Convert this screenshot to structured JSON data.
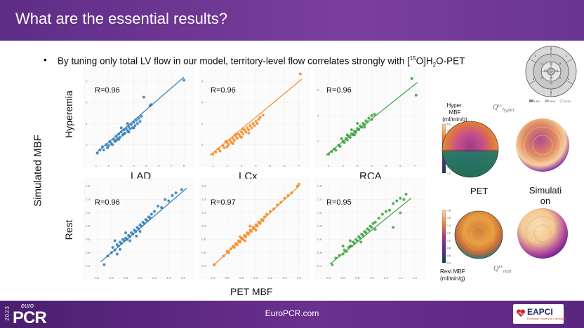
{
  "slide": {
    "title": "What are the essential results?",
    "bullet": "By tuning only total LV flow in our model, territory-level flow correlates strongly with [",
    "bullet_sup": "15",
    "bullet_mid": "O]H",
    "bullet_sub": "2",
    "bullet_end": "O-PET",
    "y_axis_label": "Simulated MBF",
    "x_axis_label": "PET MBF",
    "row_labels": [
      "Hyperemia",
      "Rest"
    ],
    "column_labels": [
      "LAD",
      "LCx",
      "RCA"
    ]
  },
  "colors": {
    "LAD": "#2d7bb6",
    "LCx": "#f28a1e",
    "RCA": "#3aa23a"
  },
  "chart_data": [
    {
      "type": "scatter",
      "panel": "LAD-hyperemia",
      "r_label": "R=0.96",
      "x_ticks": [
        "1",
        "2",
        "3",
        "4",
        "5",
        "6",
        "7",
        "8"
      ],
      "y_ticks": [
        "2",
        "4",
        "6",
        "8"
      ],
      "xlim": [
        0.5,
        8.5
      ],
      "ylim": [
        0.5,
        9
      ],
      "fit": [
        [
          1.0,
          1.2
        ],
        [
          8.0,
          8.4
        ]
      ],
      "points": [
        [
          1.1,
          1.2
        ],
        [
          1.3,
          1.5
        ],
        [
          1.5,
          1.8
        ],
        [
          1.6,
          1.5
        ],
        [
          1.8,
          2.0
        ],
        [
          2.0,
          1.9
        ],
        [
          2.1,
          2.3
        ],
        [
          2.2,
          2.1
        ],
        [
          2.4,
          2.5
        ],
        [
          2.5,
          2.3
        ],
        [
          2.6,
          2.8
        ],
        [
          2.7,
          2.6
        ],
        [
          2.8,
          3.0
        ],
        [
          2.9,
          2.7
        ],
        [
          3.0,
          3.2
        ],
        [
          3.1,
          2.9
        ],
        [
          3.2,
          3.4
        ],
        [
          3.3,
          3.1
        ],
        [
          3.4,
          3.5
        ],
        [
          3.5,
          3.3
        ],
        [
          3.6,
          3.7
        ],
        [
          3.7,
          3.5
        ],
        [
          3.8,
          3.9
        ],
        [
          3.9,
          3.6
        ],
        [
          4.0,
          4.1
        ],
        [
          4.1,
          3.8
        ],
        [
          4.2,
          4.3
        ],
        [
          4.3,
          4.0
        ],
        [
          4.4,
          4.5
        ],
        [
          4.5,
          4.2
        ],
        [
          4.6,
          4.7
        ],
        [
          2.3,
          2.0
        ],
        [
          3.5,
          4.0
        ],
        [
          3.0,
          3.6
        ],
        [
          4.0,
          3.6
        ],
        [
          1.9,
          1.7
        ],
        [
          2.6,
          2.4
        ],
        [
          5.3,
          5.7
        ],
        [
          5.4,
          5.8
        ],
        [
          4.8,
          6.5
        ],
        [
          8.0,
          8.1
        ],
        [
          3.2,
          3.0
        ],
        [
          2.8,
          2.5
        ],
        [
          3.6,
          3.2
        ]
      ]
    },
    {
      "type": "scatter",
      "panel": "LCx-hyperemia",
      "r_label": "R=0.96",
      "x_ticks": [
        "1",
        "2",
        "3",
        "4",
        "5",
        "6",
        "7"
      ],
      "y_ticks": [
        "2",
        "4",
        "6",
        "8"
      ],
      "xlim": [
        0.5,
        7.5
      ],
      "ylim": [
        0.5,
        9
      ],
      "fit": [
        [
          0.8,
          1.0
        ],
        [
          7.2,
          8.2
        ]
      ],
      "points": [
        [
          1.0,
          1.1
        ],
        [
          1.2,
          1.3
        ],
        [
          1.4,
          1.6
        ],
        [
          1.5,
          1.4
        ],
        [
          1.7,
          1.9
        ],
        [
          1.8,
          1.7
        ],
        [
          2.0,
          2.2
        ],
        [
          2.1,
          2.0
        ],
        [
          2.2,
          2.4
        ],
        [
          2.3,
          2.2
        ],
        [
          2.4,
          2.6
        ],
        [
          2.5,
          2.4
        ],
        [
          2.6,
          2.8
        ],
        [
          2.7,
          2.6
        ],
        [
          2.8,
          3.0
        ],
        [
          2.9,
          2.8
        ],
        [
          3.0,
          3.2
        ],
        [
          3.1,
          3.0
        ],
        [
          3.2,
          3.4
        ],
        [
          3.3,
          3.2
        ],
        [
          3.4,
          3.6
        ],
        [
          3.5,
          3.4
        ],
        [
          3.6,
          3.8
        ],
        [
          3.7,
          3.6
        ],
        [
          3.8,
          4.0
        ],
        [
          3.9,
          3.8
        ],
        [
          4.0,
          4.2
        ],
        [
          4.1,
          4.0
        ],
        [
          4.2,
          4.4
        ],
        [
          2.0,
          1.8
        ],
        [
          2.6,
          3.0
        ],
        [
          3.1,
          3.5
        ],
        [
          3.5,
          3.1
        ],
        [
          1.9,
          2.3
        ],
        [
          4.3,
          4.6
        ],
        [
          4.5,
          4.8
        ],
        [
          7.1,
          8.7
        ],
        [
          2.4,
          2.1
        ],
        [
          3.0,
          2.7
        ]
      ]
    },
    {
      "type": "scatter",
      "panel": "RCA-hyperemia",
      "r_label": "R=0.96",
      "x_ticks": [
        "1",
        "2",
        "3",
        "4",
        "5",
        "6",
        "7"
      ],
      "y_ticks": [
        "2",
        "4",
        "6"
      ],
      "xlim": [
        0.5,
        7.5
      ],
      "ylim": [
        0.5,
        7.5
      ],
      "fit": [
        [
          0.8,
          0.9
        ],
        [
          7.2,
          6.6
        ]
      ],
      "points": [
        [
          1.0,
          1.0
        ],
        [
          1.2,
          1.2
        ],
        [
          1.4,
          1.4
        ],
        [
          1.5,
          1.3
        ],
        [
          1.7,
          1.7
        ],
        [
          1.8,
          1.6
        ],
        [
          2.0,
          2.0
        ],
        [
          2.1,
          1.9
        ],
        [
          2.2,
          2.2
        ],
        [
          2.3,
          2.1
        ],
        [
          2.4,
          2.4
        ],
        [
          2.5,
          2.3
        ],
        [
          2.6,
          2.6
        ],
        [
          2.7,
          2.5
        ],
        [
          2.8,
          2.8
        ],
        [
          2.9,
          2.7
        ],
        [
          3.0,
          3.0
        ],
        [
          3.1,
          2.9
        ],
        [
          3.2,
          3.2
        ],
        [
          3.3,
          3.1
        ],
        [
          3.4,
          3.4
        ],
        [
          3.5,
          3.3
        ],
        [
          3.6,
          3.6
        ],
        [
          3.7,
          3.5
        ],
        [
          3.8,
          3.8
        ],
        [
          1.9,
          2.2
        ],
        [
          2.6,
          2.9
        ],
        [
          3.0,
          3.4
        ],
        [
          3.5,
          3.1
        ],
        [
          4.0,
          4.0
        ],
        [
          4.2,
          4.1
        ],
        [
          4.0,
          3.7
        ],
        [
          6.8,
          6.9
        ],
        [
          7.1,
          5.6
        ],
        [
          2.3,
          2.5
        ],
        [
          2.8,
          2.5
        ]
      ]
    },
    {
      "type": "scatter",
      "panel": "LAD-rest",
      "r_label": "R=0.96",
      "x_ticks": [
        "0.4",
        "0.6",
        "0.8",
        "1.0",
        "1.2",
        "1.4",
        "1.6"
      ],
      "y_ticks": [
        "0.4",
        "0.6",
        "0.8",
        "1.0",
        "1.2",
        "1.4",
        "1.6"
      ],
      "xlim": [
        0.3,
        1.7
      ],
      "ylim": [
        0.3,
        1.65
      ],
      "fit": [
        [
          0.45,
          0.46
        ],
        [
          1.65,
          1.57
        ]
      ],
      "points": [
        [
          0.5,
          0.42
        ],
        [
          0.55,
          0.55
        ],
        [
          0.6,
          0.6
        ],
        [
          0.62,
          0.68
        ],
        [
          0.65,
          0.64
        ],
        [
          0.68,
          0.72
        ],
        [
          0.7,
          0.7
        ],
        [
          0.72,
          0.76
        ],
        [
          0.74,
          0.74
        ],
        [
          0.76,
          0.8
        ],
        [
          0.78,
          0.78
        ],
        [
          0.8,
          0.82
        ],
        [
          0.82,
          0.8
        ],
        [
          0.84,
          0.86
        ],
        [
          0.86,
          0.84
        ],
        [
          0.88,
          0.9
        ],
        [
          0.9,
          0.88
        ],
        [
          0.92,
          0.94
        ],
        [
          0.94,
          0.92
        ],
        [
          0.96,
          0.98
        ],
        [
          0.98,
          0.96
        ],
        [
          1.0,
          1.02
        ],
        [
          1.02,
          1.0
        ],
        [
          1.04,
          1.06
        ],
        [
          1.06,
          1.04
        ],
        [
          1.08,
          1.1
        ],
        [
          1.1,
          1.08
        ],
        [
          1.12,
          1.14
        ],
        [
          1.14,
          1.12
        ],
        [
          1.16,
          1.18
        ],
        [
          1.2,
          1.22
        ],
        [
          1.25,
          1.3
        ],
        [
          1.3,
          1.28
        ],
        [
          1.35,
          1.4
        ],
        [
          1.4,
          1.38
        ],
        [
          1.45,
          1.46
        ],
        [
          1.5,
          1.5
        ],
        [
          1.58,
          1.55
        ],
        [
          0.72,
          0.65
        ],
        [
          0.86,
          0.78
        ],
        [
          0.95,
          0.85
        ],
        [
          0.8,
          0.9
        ],
        [
          0.65,
          0.78
        ],
        [
          1.0,
          0.92
        ],
        [
          0.68,
          0.58
        ]
      ]
    },
    {
      "type": "scatter",
      "panel": "LCx-rest",
      "r_label": "R=0.97",
      "x_ticks": [
        "0.4",
        "0.6",
        "0.8",
        "1.0",
        "1.2",
        "1.4",
        "1.6"
      ],
      "y_ticks": [
        "0.4",
        "0.6",
        "0.8",
        "1.0",
        "1.2",
        "1.4",
        "1.6"
      ],
      "xlim": [
        0.3,
        1.7
      ],
      "ylim": [
        0.3,
        1.65
      ],
      "fit": [
        [
          0.4,
          0.4
        ],
        [
          1.6,
          1.6
        ]
      ],
      "points": [
        [
          0.42,
          0.42
        ],
        [
          0.55,
          0.55
        ],
        [
          0.6,
          0.62
        ],
        [
          0.62,
          0.6
        ],
        [
          0.65,
          0.66
        ],
        [
          0.68,
          0.7
        ],
        [
          0.7,
          0.68
        ],
        [
          0.72,
          0.74
        ],
        [
          0.74,
          0.72
        ],
        [
          0.76,
          0.78
        ],
        [
          0.78,
          0.76
        ],
        [
          0.8,
          0.82
        ],
        [
          0.82,
          0.8
        ],
        [
          0.84,
          0.86
        ],
        [
          0.86,
          0.84
        ],
        [
          0.88,
          0.9
        ],
        [
          0.9,
          0.88
        ],
        [
          0.92,
          0.94
        ],
        [
          0.94,
          0.92
        ],
        [
          0.96,
          0.98
        ],
        [
          0.98,
          0.96
        ],
        [
          1.0,
          1.02
        ],
        [
          1.02,
          1.0
        ],
        [
          1.04,
          1.06
        ],
        [
          1.06,
          1.04
        ],
        [
          1.08,
          1.1
        ],
        [
          1.1,
          1.08
        ],
        [
          1.12,
          1.14
        ],
        [
          1.15,
          1.18
        ],
        [
          1.2,
          1.22
        ],
        [
          1.25,
          1.26
        ],
        [
          1.3,
          1.32
        ],
        [
          1.35,
          1.36
        ],
        [
          1.4,
          1.42
        ],
        [
          1.45,
          1.46
        ],
        [
          1.5,
          1.5
        ],
        [
          1.58,
          1.6
        ],
        [
          1.6,
          1.63
        ],
        [
          0.85,
          0.78
        ],
        [
          0.78,
          0.84
        ],
        [
          0.92,
          1.0
        ],
        [
          1.0,
          0.94
        ]
      ]
    },
    {
      "type": "scatter",
      "panel": "RCA-rest",
      "r_label": "R=0.95",
      "x_ticks": [
        "0.4",
        "0.6",
        "0.8",
        "1.0",
        "1.2",
        "1.4",
        "1.6"
      ],
      "y_ticks": [
        "0.4",
        "0.6",
        "0.8",
        "1.0",
        "1.2",
        "1.4",
        "1.6"
      ],
      "xlim": [
        0.3,
        1.7
      ],
      "ylim": [
        0.3,
        1.65
      ],
      "fit": [
        [
          0.42,
          0.43
        ],
        [
          1.55,
          1.42
        ]
      ],
      "points": [
        [
          0.45,
          0.42
        ],
        [
          0.5,
          0.52
        ],
        [
          0.55,
          0.56
        ],
        [
          0.6,
          0.58
        ],
        [
          0.62,
          0.64
        ],
        [
          0.65,
          0.62
        ],
        [
          0.68,
          0.68
        ],
        [
          0.7,
          0.7
        ],
        [
          0.72,
          0.7
        ],
        [
          0.74,
          0.76
        ],
        [
          0.76,
          0.74
        ],
        [
          0.78,
          0.8
        ],
        [
          0.8,
          0.78
        ],
        [
          0.82,
          0.84
        ],
        [
          0.84,
          0.82
        ],
        [
          0.86,
          0.88
        ],
        [
          0.88,
          0.86
        ],
        [
          0.9,
          0.92
        ],
        [
          0.92,
          0.9
        ],
        [
          0.94,
          0.96
        ],
        [
          0.96,
          0.94
        ],
        [
          0.98,
          1.0
        ],
        [
          1.0,
          0.98
        ],
        [
          1.02,
          1.04
        ],
        [
          1.05,
          1.06
        ],
        [
          1.1,
          1.12
        ],
        [
          1.15,
          1.18
        ],
        [
          1.2,
          1.22
        ],
        [
          1.25,
          1.24
        ],
        [
          1.3,
          1.34
        ],
        [
          1.35,
          1.38
        ],
        [
          1.4,
          1.42
        ],
        [
          1.45,
          1.4
        ],
        [
          1.48,
          1.48
        ],
        [
          1.4,
          1.2
        ],
        [
          1.3,
          0.98
        ],
        [
          0.85,
          0.76
        ],
        [
          0.7,
          0.78
        ],
        [
          1.05,
          0.95
        ],
        [
          0.6,
          0.7
        ]
      ]
    }
  ],
  "polar_maps": {
    "hyper_label": "Hyper. MBF",
    "hyper_unit": "(ml/min/g)",
    "rest_label": "Rest MBF",
    "rest_unit": "(ml/min/g)",
    "q_hyper": "Q",
    "q_hyper_sup": "LV",
    "q_hyper_sub": "hyper",
    "q_rest": "Q",
    "q_rest_sup": "LV",
    "q_rest_sub": "rest",
    "pet_label": "PET",
    "simulation_label": "Simulation",
    "hyper_colorbar_ticks": [
      "5.0",
      "4.5",
      "4.0",
      "3.5",
      "3.0",
      "2.5",
      "2.0",
      "1.5",
      "1.0"
    ],
    "rest_colorbar_ticks": [
      "1.8",
      "1.6",
      "1.4",
      "1.2",
      "1.0",
      "0.8",
      "0.6",
      "0.4"
    ]
  },
  "bullseye": {
    "segments": [
      "1",
      "2",
      "3",
      "4",
      "5",
      "6",
      "7",
      "8",
      "9",
      "10",
      "11",
      "12",
      "13",
      "14",
      "15",
      "16",
      "17"
    ],
    "legend": [
      "LAD",
      "RCA",
      "LCX"
    ]
  },
  "footer": {
    "url": "EuroPCR.com",
    "logo_year": "2023",
    "logo_euro": "euro",
    "logo_pcr": "PCR",
    "eapci": "EAPCI",
    "eapci_sub": "European Society of Cardiology"
  }
}
